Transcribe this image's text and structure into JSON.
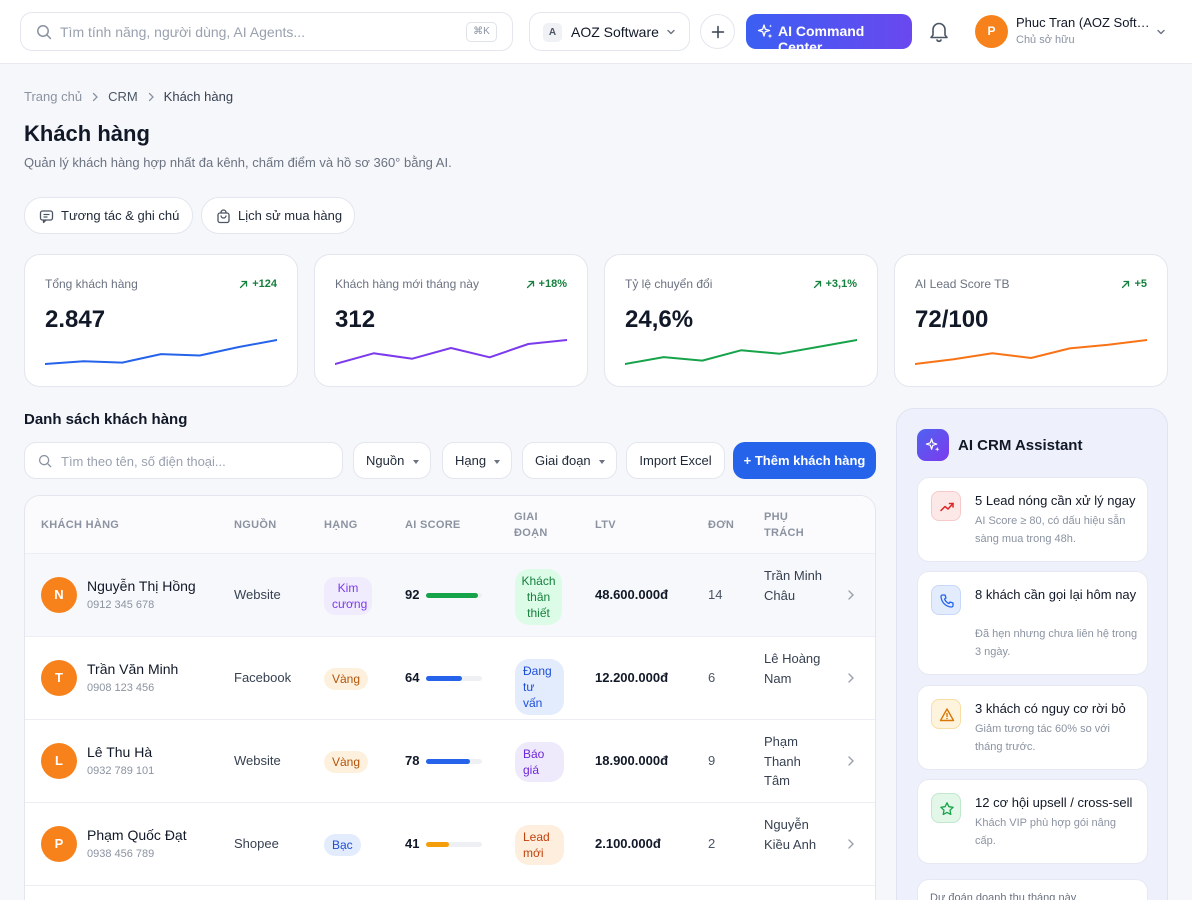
{
  "topbar": {
    "search_placeholder": "Tìm tính năng, người dùng, AI Agents...",
    "shortcut": "⌘K",
    "org_badge": "A",
    "org_name": "AOZ Software",
    "ai_button": "AI Command Center",
    "user_initial": "P",
    "user_name": "Phuc Tran (AOZ Software)",
    "user_role": "Chủ sở hữu"
  },
  "breadcrumb": [
    "Trang chủ",
    "CRM",
    "Khách hàng"
  ],
  "page": {
    "title": "Khách hàng",
    "subtitle": "Quản lý khách hàng hợp nhất đa kênh, chấm điểm và hồ sơ 360° bằng AI.",
    "actions": [
      "Tương tác & ghi chú",
      "Lịch sử mua hàng"
    ]
  },
  "stats": [
    {
      "label": "Tổng khách hàng",
      "delta": "+124",
      "value": "2.847",
      "color": "#2563eb",
      "trend": [
        3,
        5,
        4,
        10,
        9,
        15,
        20
      ]
    },
    {
      "label": "Khách hàng mới tháng này",
      "delta": "+18%",
      "value": "312",
      "color": "#7c3aed",
      "trend": [
        3,
        11,
        7,
        15,
        8,
        18,
        21
      ]
    },
    {
      "label": "Tỷ lệ chuyển đổi",
      "delta": "+3,1%",
      "value": "24,6%",
      "color": "#16a34a",
      "trend": [
        3,
        9,
        6,
        15,
        12,
        18,
        24
      ]
    },
    {
      "label": "AI Lead Score TB",
      "delta": "+5",
      "value": "72/100",
      "color": "#f97316",
      "trend": [
        3,
        7,
        12,
        8,
        16,
        19,
        23
      ]
    }
  ],
  "list": {
    "title": "Danh sách khách hàng",
    "search_placeholder": "Tìm theo tên, số điện thoại...",
    "filters": [
      "Nguồn",
      "Hạng",
      "Giai đoạn"
    ],
    "import_label": "Import Excel",
    "add_label": "+ Thêm khách hàng",
    "columns": [
      "KHÁCH HÀNG",
      "NGUỒN",
      "HẠNG",
      "AI SCORE",
      "GIAI ĐOẠN",
      "LTV",
      "ĐƠN",
      "PHỤ TRÁCH"
    ],
    "rows": [
      {
        "initial": "N",
        "name": "Nguyễn Thị Hồng",
        "phone": "0912 345 678",
        "source": "Website",
        "tier": "Kim cương",
        "score": 92,
        "stage": "Khách thân thiết",
        "ltv": "48.600.000đ",
        "orders": "14",
        "owner": "Trần Minh Châu"
      },
      {
        "initial": "T",
        "name": "Trần Văn Minh",
        "phone": "0908 123 456",
        "source": "Facebook",
        "tier": "Vàng",
        "score": 64,
        "stage": "Đang tư vấn",
        "ltv": "12.200.000đ",
        "orders": "6",
        "owner": "Lê Hoàng Nam"
      },
      {
        "initial": "L",
        "name": "Lê Thu Hà",
        "phone": "0932 789 101",
        "source": "Website",
        "tier": "Vàng",
        "score": 78,
        "stage": "Báo giá",
        "ltv": "18.900.000đ",
        "orders": "9",
        "owner": "Phạm Thanh Tâm"
      },
      {
        "initial": "P",
        "name": "Phạm Quốc Đạt",
        "phone": "0938 456 789",
        "source": "Shopee",
        "tier": "Bạc",
        "score": 41,
        "stage": "Lead mới",
        "ltv": "2.100.000đ",
        "orders": "2",
        "owner": "Nguyễn Kiều Anh"
      }
    ]
  },
  "assistant": {
    "title": "AI CRM Assistant",
    "cards": [
      {
        "title": "5 Lead nóng cần xử lý ngay",
        "desc": "AI Score ≥ 80, có dấu hiệu sẵn sàng mua trong 48h.",
        "icon": "trending-up-icon"
      },
      {
        "title": "8 khách cần gọi lại hôm nay",
        "desc": "Đã hẹn nhưng chưa liên hệ trong 3 ngày.",
        "icon": "phone-icon"
      },
      {
        "title": "3 khách có nguy cơ rời bỏ",
        "desc": "Giảm tương tác 60% so với tháng trước.",
        "icon": "warning-icon"
      },
      {
        "title": "12 cơ hội upsell / cross-sell",
        "desc": "Khách VIP phù hợp gói nâng cấp.",
        "icon": "star-icon"
      }
    ],
    "forecast_label": "Dự đoán doanh thu tháng này"
  }
}
